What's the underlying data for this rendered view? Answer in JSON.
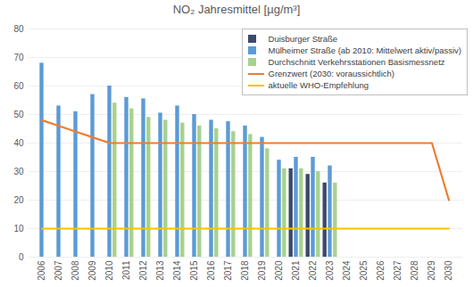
{
  "chart_data": {
    "type": "bar",
    "title": "NO₂ Jahresmittel [µg/m³]",
    "categories": [
      "2006",
      "2007",
      "2008",
      "2009",
      "2010",
      "2011",
      "2012",
      "2013",
      "2014",
      "2015",
      "2016",
      "2017",
      "2018",
      "2019",
      "2020",
      "2021",
      "2022",
      "2023",
      "2024",
      "2025",
      "2026",
      "2027",
      "2028",
      "2029",
      "2030"
    ],
    "series": [
      {
        "name": "Duisburger Straße",
        "type": "bar",
        "color": "#3b4a6b",
        "values": [
          null,
          null,
          null,
          null,
          null,
          null,
          null,
          null,
          null,
          null,
          null,
          null,
          null,
          null,
          null,
          31,
          29,
          26,
          null,
          null,
          null,
          null,
          null,
          null,
          null
        ]
      },
      {
        "name": "Mülheimer Straße (ab 2010: Mittelwert aktiv/passiv)",
        "type": "bar",
        "color": "#5b9bd5",
        "values": [
          68,
          53,
          51,
          57,
          60,
          56,
          55.5,
          50.5,
          53,
          50,
          48,
          47.5,
          46,
          42,
          34,
          35,
          35,
          32,
          null,
          null,
          null,
          null,
          null,
          null,
          null
        ]
      },
      {
        "name": "Durchschnitt Verkehrsstationen Basismessnetz",
        "type": "bar",
        "color": "#a9d18e",
        "values": [
          null,
          null,
          null,
          null,
          54,
          52,
          49,
          48,
          47,
          46,
          45,
          44,
          43,
          38,
          31,
          31,
          30,
          26,
          null,
          null,
          null,
          null,
          null,
          null,
          null
        ]
      },
      {
        "name": "Grenzwert (2030: voraussichtlich)",
        "type": "line",
        "color": "#ed7d31",
        "values": [
          48,
          46,
          44,
          42,
          40,
          40,
          40,
          40,
          40,
          40,
          40,
          40,
          40,
          40,
          40,
          40,
          40,
          40,
          40,
          40,
          40,
          40,
          40,
          40,
          20
        ]
      },
      {
        "name": "aktuelle WHO-Empfehlung",
        "type": "line",
        "color": "#ffc000",
        "values": [
          10,
          10,
          10,
          10,
          10,
          10,
          10,
          10,
          10,
          10,
          10,
          10,
          10,
          10,
          10,
          10,
          10,
          10,
          10,
          10,
          10,
          10,
          10,
          10,
          10
        ]
      }
    ],
    "ylim": [
      0,
      80
    ],
    "yticks": [
      0,
      10,
      20,
      30,
      40,
      50,
      60,
      70,
      80
    ],
    "grid": true,
    "legend": "top-right"
  }
}
